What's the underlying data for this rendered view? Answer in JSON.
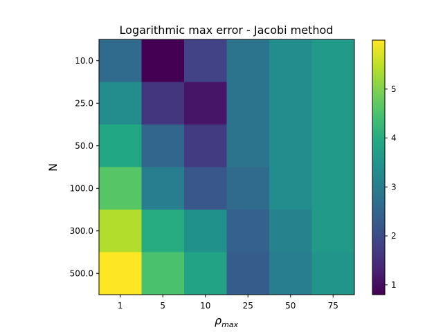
{
  "chart_data": {
    "type": "heatmap",
    "title": "Logarithmic max error - Jacobi method",
    "xlabel_base": "ρ",
    "xlabel_sub": "max",
    "ylabel": "N",
    "x_categories": [
      "1",
      "5",
      "10",
      "25",
      "50",
      "75"
    ],
    "y_categories": [
      "10.0",
      "25.0",
      "50.0",
      "100.0",
      "300.0",
      "500.0"
    ],
    "values": [
      [
        2.6,
        0.8,
        1.8,
        2.8,
        3.3,
        3.6
      ],
      [
        3.3,
        1.6,
        1.1,
        2.8,
        3.3,
        3.6
      ],
      [
        3.9,
        2.5,
        1.7,
        2.8,
        3.3,
        3.6
      ],
      [
        4.6,
        3.0,
        2.2,
        2.6,
        3.3,
        3.6
      ],
      [
        5.4,
        4.0,
        3.4,
        2.4,
        3.1,
        3.6
      ],
      [
        6.0,
        4.5,
        3.8,
        2.3,
        3.0,
        3.5
      ]
    ],
    "colorbar": {
      "min": 0.8,
      "max": 6.0,
      "ticks": [
        1,
        2,
        3,
        4,
        5
      ]
    },
    "colormap": "viridis"
  }
}
